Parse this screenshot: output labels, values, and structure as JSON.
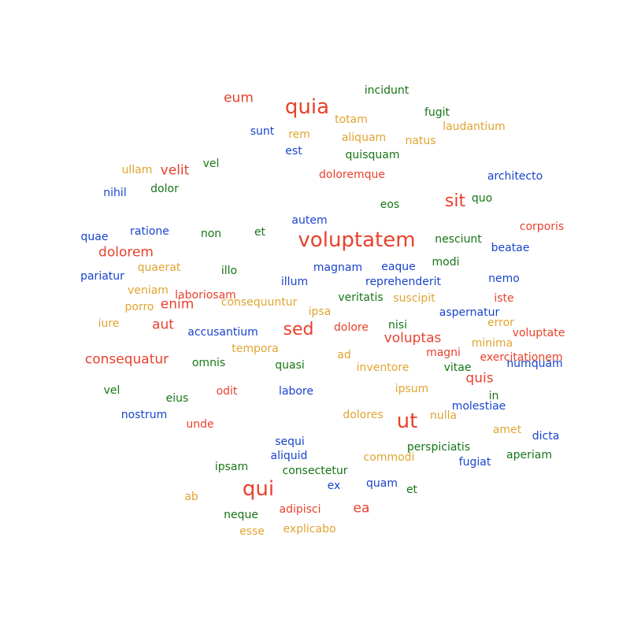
{
  "palette": {
    "red": "#e8412c",
    "gold": "#e0a431",
    "green": "#167516",
    "blue": "#1944cc"
  },
  "words": [
    {
      "text": "voluptatem",
      "weight": 5,
      "color": "red"
    },
    {
      "text": "quia",
      "weight": 5,
      "color": "red"
    },
    {
      "text": "qui",
      "weight": 5,
      "color": "red"
    },
    {
      "text": "ut",
      "weight": 5,
      "color": "red"
    },
    {
      "text": "sit",
      "weight": 4,
      "color": "red"
    },
    {
      "text": "sed",
      "weight": 4,
      "color": "red"
    },
    {
      "text": "consequatur",
      "weight": 3,
      "color": "red"
    },
    {
      "text": "voluptas",
      "weight": 3,
      "color": "red"
    },
    {
      "text": "dolorem",
      "weight": 3,
      "color": "red"
    },
    {
      "text": "eum",
      "weight": 3,
      "color": "red"
    },
    {
      "text": "velit",
      "weight": 3,
      "color": "red"
    },
    {
      "text": "enim",
      "weight": 3,
      "color": "red"
    },
    {
      "text": "aut",
      "weight": 3,
      "color": "red"
    },
    {
      "text": "quis",
      "weight": 3,
      "color": "red"
    },
    {
      "text": "ea",
      "weight": 3,
      "color": "red"
    },
    {
      "text": "incidunt",
      "weight": 1,
      "color": "green"
    },
    {
      "text": "fugit",
      "weight": 1,
      "color": "green"
    },
    {
      "text": "totam",
      "weight": 1,
      "color": "gold"
    },
    {
      "text": "laudantium",
      "weight": 1,
      "color": "gold"
    },
    {
      "text": "sunt",
      "weight": 1,
      "color": "blue"
    },
    {
      "text": "rem",
      "weight": 1,
      "color": "gold"
    },
    {
      "text": "aliquam",
      "weight": 1,
      "color": "gold"
    },
    {
      "text": "natus",
      "weight": 1,
      "color": "gold"
    },
    {
      "text": "est",
      "weight": 1,
      "color": "blue"
    },
    {
      "text": "quisquam",
      "weight": 1,
      "color": "green"
    },
    {
      "text": "ullam",
      "weight": 1,
      "color": "gold"
    },
    {
      "text": "vel",
      "weight": 1,
      "color": "green"
    },
    {
      "text": "doloremque",
      "weight": 1,
      "color": "red"
    },
    {
      "text": "architecto",
      "weight": 1,
      "color": "blue"
    },
    {
      "text": "nihil",
      "weight": 1,
      "color": "blue"
    },
    {
      "text": "dolor",
      "weight": 1,
      "color": "green"
    },
    {
      "text": "quo",
      "weight": 1,
      "color": "green"
    },
    {
      "text": "eos",
      "weight": 1,
      "color": "green"
    },
    {
      "text": "autem",
      "weight": 1,
      "color": "blue"
    },
    {
      "text": "corporis",
      "weight": 1,
      "color": "red"
    },
    {
      "text": "quae",
      "weight": 1,
      "color": "blue"
    },
    {
      "text": "ratione",
      "weight": 1,
      "color": "blue"
    },
    {
      "text": "non",
      "weight": 1,
      "color": "green"
    },
    {
      "text": "et",
      "weight": 1,
      "color": "green"
    },
    {
      "text": "nesciunt",
      "weight": 1,
      "color": "green"
    },
    {
      "text": "beatae",
      "weight": 1,
      "color": "blue"
    },
    {
      "text": "modi",
      "weight": 1,
      "color": "green"
    },
    {
      "text": "quaerat",
      "weight": 1,
      "color": "gold"
    },
    {
      "text": "illo",
      "weight": 1,
      "color": "green"
    },
    {
      "text": "magnam",
      "weight": 1,
      "color": "blue"
    },
    {
      "text": "eaque",
      "weight": 1,
      "color": "blue"
    },
    {
      "text": "pariatur",
      "weight": 1,
      "color": "blue"
    },
    {
      "text": "illum",
      "weight": 1,
      "color": "blue"
    },
    {
      "text": "reprehenderit",
      "weight": 1,
      "color": "blue"
    },
    {
      "text": "nemo",
      "weight": 1,
      "color": "blue"
    },
    {
      "text": "veniam",
      "weight": 1,
      "color": "gold"
    },
    {
      "text": "laboriosam",
      "weight": 1,
      "color": "red"
    },
    {
      "text": "veritatis",
      "weight": 1,
      "color": "green"
    },
    {
      "text": "suscipit",
      "weight": 1,
      "color": "gold"
    },
    {
      "text": "iste",
      "weight": 1,
      "color": "red"
    },
    {
      "text": "consequuntur",
      "weight": 1,
      "color": "gold"
    },
    {
      "text": "porro",
      "weight": 1,
      "color": "gold"
    },
    {
      "text": "ipsa",
      "weight": 1,
      "color": "gold"
    },
    {
      "text": "aspernatur",
      "weight": 1,
      "color": "blue"
    },
    {
      "text": "iure",
      "weight": 1,
      "color": "gold"
    },
    {
      "text": "error",
      "weight": 1,
      "color": "gold"
    },
    {
      "text": "nisi",
      "weight": 1,
      "color": "green"
    },
    {
      "text": "dolore",
      "weight": 1,
      "color": "red"
    },
    {
      "text": "accusantium",
      "weight": 1,
      "color": "blue"
    },
    {
      "text": "voluptate",
      "weight": 1,
      "color": "red"
    },
    {
      "text": "minima",
      "weight": 1,
      "color": "gold"
    },
    {
      "text": "tempora",
      "weight": 1,
      "color": "gold"
    },
    {
      "text": "ad",
      "weight": 1,
      "color": "gold"
    },
    {
      "text": "magni",
      "weight": 1,
      "color": "red"
    },
    {
      "text": "exercitationem",
      "weight": 1,
      "color": "red"
    },
    {
      "text": "omnis",
      "weight": 1,
      "color": "green"
    },
    {
      "text": "quasi",
      "weight": 1,
      "color": "green"
    },
    {
      "text": "inventore",
      "weight": 1,
      "color": "gold"
    },
    {
      "text": "vitae",
      "weight": 1,
      "color": "green"
    },
    {
      "text": "numquam",
      "weight": 1,
      "color": "blue"
    },
    {
      "text": "vel",
      "weight": 1,
      "color": "green"
    },
    {
      "text": "odit",
      "weight": 1,
      "color": "red"
    },
    {
      "text": "labore",
      "weight": 1,
      "color": "blue"
    },
    {
      "text": "ipsum",
      "weight": 1,
      "color": "gold"
    },
    {
      "text": "eius",
      "weight": 1,
      "color": "green"
    },
    {
      "text": "in",
      "weight": 1,
      "color": "green"
    },
    {
      "text": "nostrum",
      "weight": 1,
      "color": "blue"
    },
    {
      "text": "molestiae",
      "weight": 1,
      "color": "blue"
    },
    {
      "text": "dolores",
      "weight": 1,
      "color": "gold"
    },
    {
      "text": "nulla",
      "weight": 1,
      "color": "gold"
    },
    {
      "text": "unde",
      "weight": 1,
      "color": "red"
    },
    {
      "text": "amet",
      "weight": 1,
      "color": "gold"
    },
    {
      "text": "dicta",
      "weight": 1,
      "color": "blue"
    },
    {
      "text": "sequi",
      "weight": 1,
      "color": "blue"
    },
    {
      "text": "perspiciatis",
      "weight": 1,
      "color": "green"
    },
    {
      "text": "aliquid",
      "weight": 1,
      "color": "blue"
    },
    {
      "text": "commodi",
      "weight": 1,
      "color": "gold"
    },
    {
      "text": "aperiam",
      "weight": 1,
      "color": "green"
    },
    {
      "text": "fugiat",
      "weight": 1,
      "color": "blue"
    },
    {
      "text": "ipsam",
      "weight": 1,
      "color": "green"
    },
    {
      "text": "consectetur",
      "weight": 1,
      "color": "green"
    },
    {
      "text": "ex",
      "weight": 1,
      "color": "blue"
    },
    {
      "text": "quam",
      "weight": 1,
      "color": "blue"
    },
    {
      "text": "et",
      "weight": 1,
      "color": "green"
    },
    {
      "text": "ab",
      "weight": 1,
      "color": "gold"
    },
    {
      "text": "adipisci",
      "weight": 1,
      "color": "red"
    },
    {
      "text": "neque",
      "weight": 1,
      "color": "green"
    },
    {
      "text": "esse",
      "weight": 1,
      "color": "gold"
    },
    {
      "text": "explicabo",
      "weight": 1,
      "color": "gold"
    }
  ]
}
